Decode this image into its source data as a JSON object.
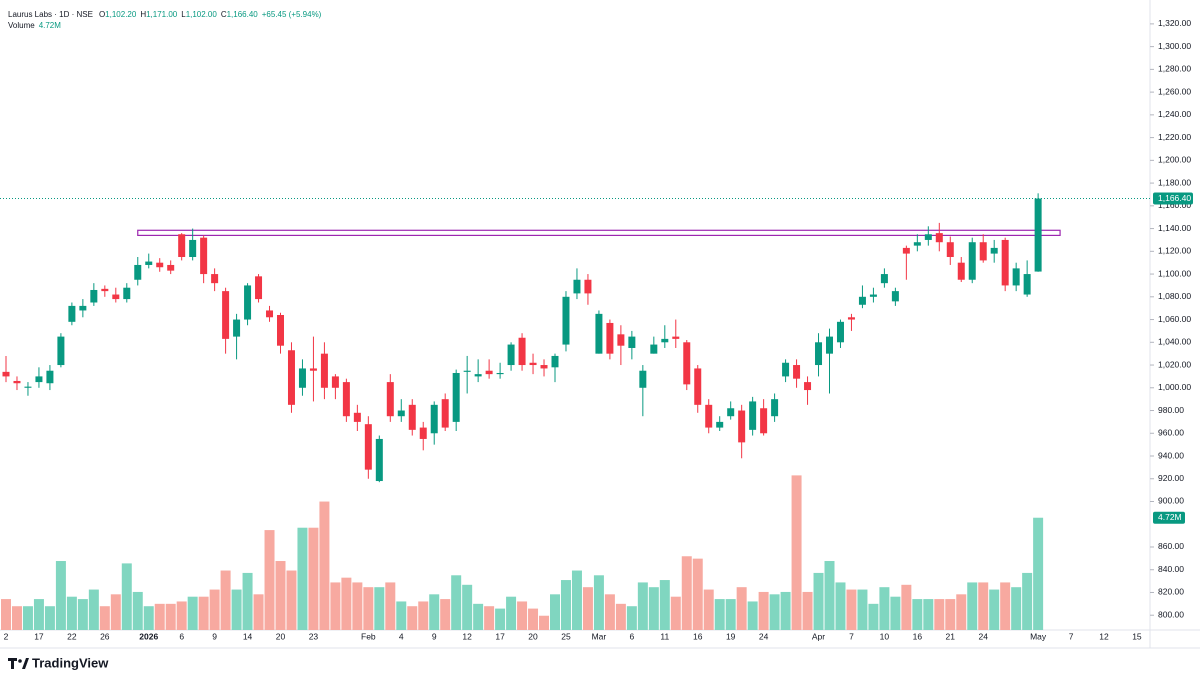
{
  "chart_data": {
    "type": "candlestick",
    "title": "Laurus Labs · 1D · NSE",
    "ohlc": [
      {
        "label": "O",
        "value": "1,102.20"
      },
      {
        "label": "H",
        "value": "1,171.00"
      },
      {
        "label": "L",
        "value": "1,102.00"
      },
      {
        "label": "C",
        "value": "1,166.40"
      }
    ],
    "change": "+65.45 (+5.94%)",
    "volume_title": "Volume",
    "volume_label": "4.72M",
    "last_price_label": "1,166.40",
    "brand": "TradingView",
    "up_color": "#089981",
    "down_color": "#f23645",
    "volume_up_color": "#80d6c0",
    "volume_down_color": "#f7a9a0",
    "box": {
      "low": 1134,
      "high": 1138.5,
      "from": 12,
      "to": 96,
      "color": "#9c27b0"
    },
    "categories": [
      "2",
      null,
      null,
      "17",
      null,
      null,
      "22",
      null,
      null,
      "26",
      null,
      null,
      null,
      "2026",
      null,
      null,
      "6",
      null,
      null,
      "9",
      null,
      null,
      "14",
      null,
      null,
      "20",
      null,
      null,
      "23",
      null,
      null,
      null,
      null,
      "Feb",
      null,
      null,
      "4",
      null,
      null,
      "9",
      null,
      null,
      "12",
      null,
      null,
      "17",
      null,
      null,
      "20",
      null,
      null,
      "25",
      null,
      null,
      "Mar",
      null,
      null,
      "6",
      null,
      null,
      "11",
      null,
      null,
      "16",
      null,
      null,
      "19",
      null,
      null,
      "24",
      null,
      null,
      null,
      null,
      "Apr",
      null,
      null,
      "7",
      null,
      null,
      "10",
      null,
      null,
      "16",
      null,
      null,
      "21",
      null,
      null,
      "24",
      null,
      null,
      null,
      null,
      "May",
      null,
      null,
      "7",
      null,
      null,
      "12",
      null,
      null,
      "15"
    ],
    "open": [
      1014,
      1006,
      1000,
      1005,
      1004,
      1020,
      1058,
      1068,
      1075,
      1087,
      1082,
      1078,
      1095,
      1108,
      1110,
      1108,
      1135,
      1115,
      1132,
      1100,
      1085,
      1045,
      1060,
      1098,
      1068,
      1064,
      1033,
      1000,
      1017,
      1030,
      1010,
      1005,
      978,
      968,
      918,
      1005,
      975,
      985,
      965,
      960,
      990,
      970,
      1014,
      1010,
      1015,
      1012,
      1020,
      1044,
      1022,
      1020,
      1018,
      1038,
      1083,
      1095,
      1030,
      1057,
      1047,
      1035,
      1000,
      1030,
      1040,
      1045,
      1040,
      1017,
      985,
      965,
      975,
      980,
      963,
      982,
      975,
      1010,
      1020,
      1005,
      1020,
      1030,
      1040,
      1062,
      1073,
      1080,
      1092,
      1076,
      1123,
      1125,
      1130,
      1136,
      1128,
      1110,
      1095,
      1128,
      1118,
      1130,
      1090,
      1082,
      1102.2,
      null,
      null,
      null,
      null,
      null,
      null,
      null,
      null,
      null
    ],
    "high": [
      1028,
      1010,
      1005,
      1018,
      1020,
      1048,
      1075,
      1078,
      1092,
      1090,
      1088,
      1092,
      1115,
      1118,
      1114,
      1112,
      1136,
      1140,
      1134,
      1105,
      1088,
      1065,
      1092,
      1100,
      1072,
      1066,
      1040,
      1025,
      1045,
      1040,
      1012,
      1008,
      985,
      975,
      958,
      1012,
      990,
      990,
      970,
      988,
      995,
      1016,
      1028,
      1025,
      1025,
      1022,
      1040,
      1048,
      1030,
      1025,
      1030,
      1085,
      1105,
      1100,
      1068,
      1060,
      1055,
      1050,
      1020,
      1045,
      1055,
      1060,
      1042,
      1020,
      990,
      975,
      988,
      985,
      992,
      990,
      995,
      1025,
      1025,
      1010,
      1048,
      1052,
      1060,
      1065,
      1090,
      1088,
      1105,
      1088,
      1125,
      1135,
      1142,
      1145,
      1133,
      1115,
      1132,
      1135,
      1130,
      1132,
      1110,
      1112,
      1171,
      null,
      null,
      null,
      null,
      null,
      null,
      null,
      null,
      null
    ],
    "low": [
      1005,
      998,
      993,
      1000,
      998,
      1018,
      1055,
      1062,
      1072,
      1080,
      1075,
      1075,
      1090,
      1105,
      1102,
      1100,
      1112,
      1112,
      1092,
      1085,
      1030,
      1025,
      1055,
      1075,
      1058,
      1030,
      978,
      993,
      988,
      990,
      990,
      970,
      962,
      920,
      917,
      970,
      970,
      958,
      945,
      950,
      962,
      962,
      995,
      1005,
      1008,
      1008,
      1015,
      1015,
      1012,
      1010,
      1005,
      1032,
      1078,
      1073,
      1030,
      1025,
      1020,
      1025,
      975,
      1030,
      1035,
      1035,
      998,
      978,
      960,
      962,
      972,
      938,
      958,
      958,
      970,
      1005,
      1000,
      985,
      1010,
      995,
      1035,
      1050,
      1070,
      1075,
      1088,
      1072,
      1095,
      1120,
      1125,
      1120,
      1108,
      1093,
      1092,
      1110,
      1110,
      1085,
      1085,
      1080,
      1102,
      null,
      null,
      null,
      null,
      null,
      null,
      null,
      null,
      null
    ],
    "close": [
      1010,
      1004,
      1001,
      1010,
      1015,
      1045,
      1072,
      1072,
      1086,
      1085,
      1078,
      1088,
      1108,
      1111,
      1106,
      1103,
      1115,
      1130,
      1100,
      1092,
      1043,
      1060,
      1090,
      1078,
      1062,
      1037,
      985,
      1017,
      1015,
      1000,
      1000,
      975,
      970,
      928,
      955,
      975,
      980,
      963,
      955,
      985,
      965,
      1013,
      1015,
      1012,
      1012,
      1013,
      1038,
      1020,
      1020,
      1017,
      1028,
      1080,
      1095,
      1083,
      1065,
      1030,
      1037,
      1045,
      1015,
      1038,
      1043,
      1043,
      1003,
      985,
      965,
      970,
      982,
      952,
      988,
      960,
      990,
      1022,
      1008,
      998,
      1040,
      1045,
      1058,
      1060,
      1080,
      1082,
      1100,
      1085,
      1118,
      1128,
      1135,
      1128,
      1115,
      1095,
      1128,
      1112,
      1123,
      1090,
      1105,
      1100,
      1166.4,
      null,
      null,
      null,
      null,
      null,
      null,
      null,
      null,
      null
    ],
    "volume": [
      1.3,
      1.0,
      1.0,
      1.3,
      1.0,
      2.9,
      1.4,
      1.3,
      1.7,
      1.0,
      1.5,
      2.8,
      1.6,
      1.0,
      1.1,
      1.1,
      1.2,
      1.4,
      1.4,
      1.7,
      2.5,
      1.7,
      2.4,
      1.5,
      4.2,
      2.9,
      2.5,
      4.3,
      4.3,
      5.4,
      2.0,
      2.2,
      2.0,
      1.8,
      1.8,
      2.0,
      1.2,
      1.0,
      1.2,
      1.5,
      1.3,
      2.3,
      1.9,
      1.1,
      1.0,
      0.9,
      1.4,
      1.2,
      0.9,
      0.6,
      1.5,
      2.1,
      2.5,
      1.8,
      2.3,
      1.5,
      1.1,
      1.0,
      2.0,
      1.8,
      2.1,
      1.4,
      3.1,
      3.0,
      1.7,
      1.3,
      1.3,
      1.8,
      1.2,
      1.6,
      1.5,
      1.6,
      6.5,
      1.6,
      2.4,
      2.9,
      2.0,
      1.7,
      1.7,
      1.1,
      1.8,
      1.4,
      1.9,
      1.3,
      1.3,
      1.3,
      1.3,
      1.5,
      2.0,
      2.0,
      1.7,
      2.0,
      1.8,
      2.4,
      4.72,
      null,
      null,
      null,
      null,
      null,
      null,
      null,
      null,
      null
    ],
    "ylim": [
      787,
      1341
    ],
    "yticks": [
      {
        "value": 800,
        "label": "800.00"
      },
      {
        "value": 820,
        "label": "820.00"
      },
      {
        "value": 840,
        "label": "840.00"
      },
      {
        "value": 860,
        "label": "860.00"
      },
      {
        "value": 900,
        "label": "900.00"
      },
      {
        "value": 920,
        "label": "920.00"
      },
      {
        "value": 940,
        "label": "940.00"
      },
      {
        "value": 960,
        "label": "960.00"
      },
      {
        "value": 980,
        "label": "980.00"
      },
      {
        "value": 1000,
        "label": "1,000.00"
      },
      {
        "value": 1020,
        "label": "1,020.00"
      },
      {
        "value": 1040,
        "label": "1,040.00"
      },
      {
        "value": 1060,
        "label": "1,060.00"
      },
      {
        "value": 1080,
        "label": "1,080.00"
      },
      {
        "value": 1100,
        "label": "1,100.00"
      },
      {
        "value": 1120,
        "label": "1,120.00"
      },
      {
        "value": 1140,
        "label": "1,140.00"
      },
      {
        "value": 1160,
        "label": "1,160.00"
      },
      {
        "value": 1180,
        "label": "1,180.00"
      },
      {
        "value": 1200,
        "label": "1,200.00"
      },
      {
        "value": 1220,
        "label": "1,220.00"
      },
      {
        "value": 1240,
        "label": "1,240.00"
      },
      {
        "value": 1260,
        "label": "1,260.00"
      },
      {
        "value": 1280,
        "label": "1,280.00"
      },
      {
        "value": 1300,
        "label": "1,300.00"
      },
      {
        "value": 1320,
        "label": "1,320.00"
      }
    ],
    "volume_lim": [
      0,
      6.6
    ]
  }
}
